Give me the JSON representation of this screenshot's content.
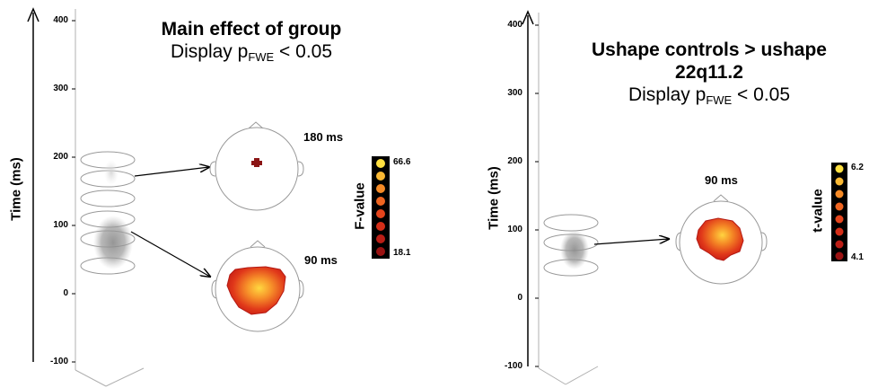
{
  "left_panel": {
    "title": "Main effect of group",
    "subtitle_prefix": "Display p",
    "subtitle_sub": "FWE",
    "subtitle_suffix": " < 0.05",
    "axis_label": "Time (ms)",
    "ticks": [
      "400",
      "300",
      "200",
      "100",
      "0",
      "-100"
    ],
    "maps": [
      {
        "time": "180 ms",
        "shape": "small-cluster"
      },
      {
        "time": "90 ms",
        "shape": "large-cluster"
      }
    ],
    "colorbar": {
      "label": "F-value",
      "max": "66.6",
      "min": "18.1",
      "steps": 8
    }
  },
  "right_panel": {
    "title": "Ushape controls > ushape 22q11.2",
    "subtitle_prefix": "Display p",
    "subtitle_sub": "FWE",
    "subtitle_suffix": " < 0.05",
    "axis_label": "Time (ms)",
    "ticks": [
      "400",
      "300",
      "200",
      "100",
      "0",
      "-100"
    ],
    "maps": [
      {
        "time": "90 ms",
        "shape": "large-cluster"
      }
    ],
    "colorbar": {
      "label": "t-value",
      "max": "6.2",
      "min": "4.1",
      "steps": 8
    }
  },
  "colors": {
    "hot_low": "#8b1010",
    "hot_mid": "#e8401a",
    "hot_high": "#ffe040"
  }
}
